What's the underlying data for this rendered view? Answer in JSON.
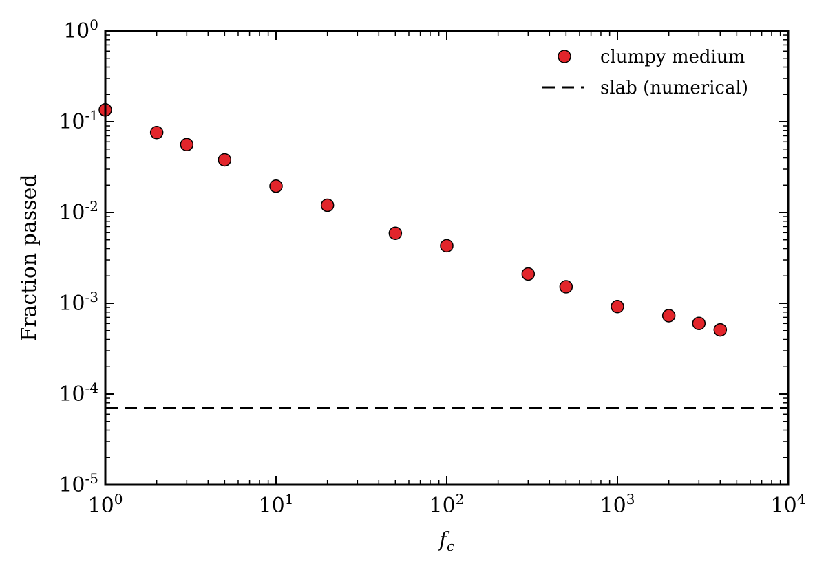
{
  "chart_data": {
    "type": "scatter",
    "xlabel_base": "f",
    "xlabel_sub": "c",
    "ylabel": "Fraction passed",
    "x_scale": "log",
    "y_scale": "log",
    "xlim": [
      1,
      10000
    ],
    "ylim": [
      1e-05,
      1
    ],
    "x_ticks": [
      {
        "base": "10",
        "exp": "0",
        "value": 1
      },
      {
        "base": "10",
        "exp": "1",
        "value": 10
      },
      {
        "base": "10",
        "exp": "2",
        "value": 100
      },
      {
        "base": "10",
        "exp": "3",
        "value": 1000
      },
      {
        "base": "10",
        "exp": "4",
        "value": 10000
      }
    ],
    "y_ticks": [
      {
        "base": "10",
        "exp": "0",
        "value": 1
      },
      {
        "base": "10",
        "exp": "-1",
        "value": 0.1
      },
      {
        "base": "10",
        "exp": "-2",
        "value": 0.01
      },
      {
        "base": "10",
        "exp": "-3",
        "value": 0.001
      },
      {
        "base": "10",
        "exp": "-4",
        "value": 0.0001
      },
      {
        "base": "10",
        "exp": "-5",
        "value": 1e-05
      }
    ],
    "grid": false,
    "legend_position": "top-right",
    "series": [
      {
        "name": "clumpy medium",
        "type": "scatter",
        "color": "#e2252b",
        "x": [
          1,
          2,
          3,
          5,
          10,
          20,
          50,
          100,
          300,
          500,
          1000,
          2000,
          3000,
          4000
        ],
        "y": [
          0.135,
          0.076,
          0.056,
          0.038,
          0.0195,
          0.012,
          0.0059,
          0.0043,
          0.0021,
          0.00152,
          0.00092,
          0.00073,
          0.0006,
          0.00051
        ]
      },
      {
        "name": "slab (numerical)",
        "type": "hline",
        "color": "#000000",
        "y": 7e-05
      }
    ]
  }
}
